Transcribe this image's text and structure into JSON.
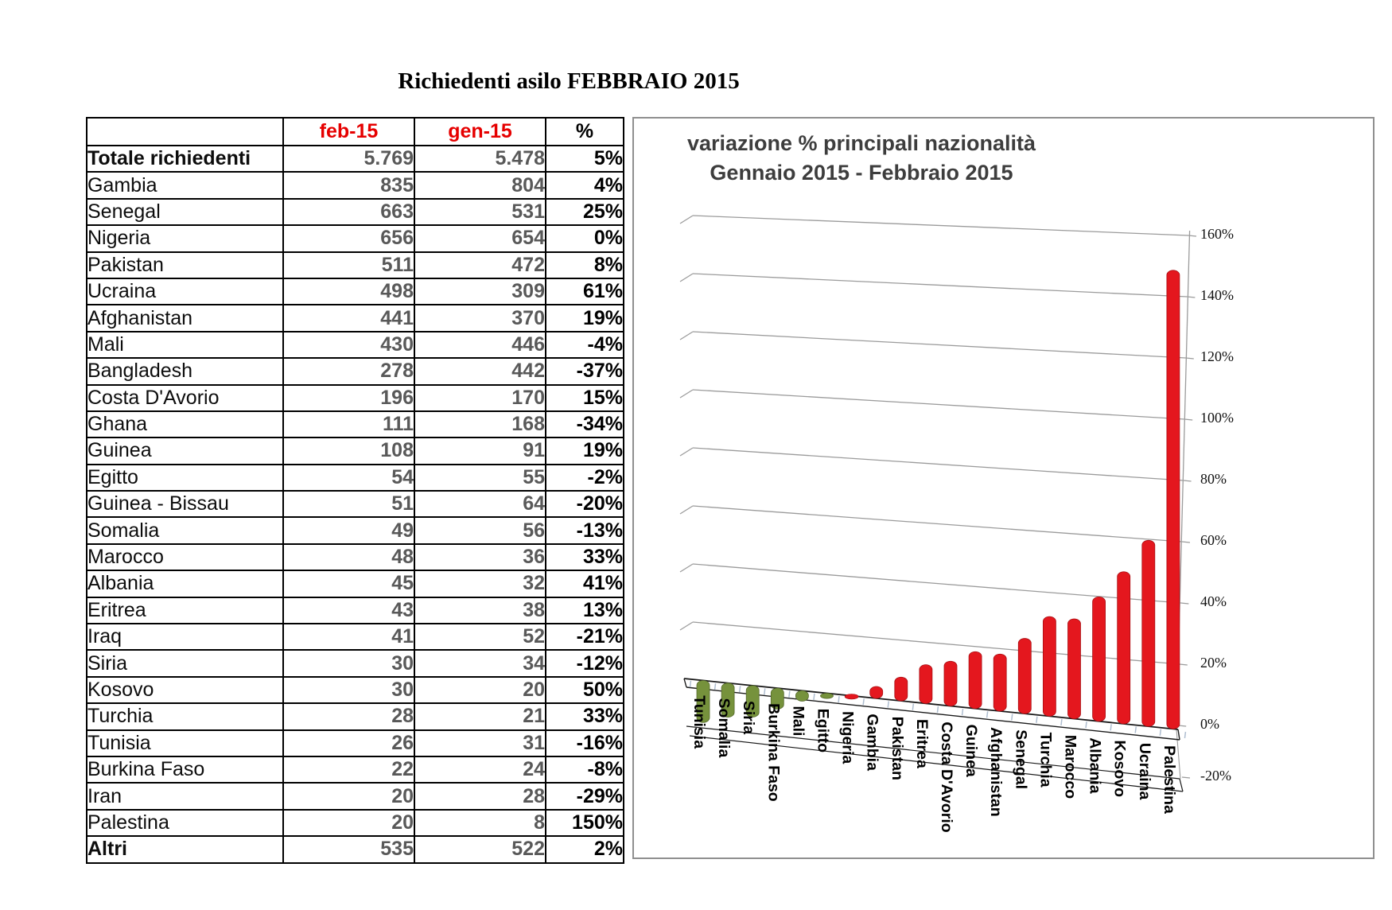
{
  "page_title": "Richiedenti asilo FEBBRAIO 2015",
  "table": {
    "headers": [
      "",
      "feb-15",
      "gen-15",
      "%"
    ],
    "header_accent_color": "#e60000",
    "highlight_color": "#ffff00",
    "rows": [
      {
        "label": "Totale richiedenti",
        "feb": "5.769",
        "gen": "5.478",
        "pct": "5%",
        "bold": true,
        "highlight": true
      },
      {
        "label": "Gambia",
        "feb": "835",
        "gen": "804",
        "pct": "4%"
      },
      {
        "label": "Senegal",
        "feb": "663",
        "gen": "531",
        "pct": "25%"
      },
      {
        "label": "Nigeria",
        "feb": "656",
        "gen": "654",
        "pct": "0%"
      },
      {
        "label": "Pakistan",
        "feb": "511",
        "gen": "472",
        "pct": "8%"
      },
      {
        "label": "Ucraina",
        "feb": "498",
        "gen": "309",
        "pct": "61%"
      },
      {
        "label": "Afghanistan",
        "feb": "441",
        "gen": "370",
        "pct": "19%"
      },
      {
        "label": "Mali",
        "feb": "430",
        "gen": "446",
        "pct": "-4%"
      },
      {
        "label": "Bangladesh",
        "feb": "278",
        "gen": "442",
        "pct": "-37%"
      },
      {
        "label": "Costa D'Avorio",
        "feb": "196",
        "gen": "170",
        "pct": "15%"
      },
      {
        "label": "Ghana",
        "feb": "111",
        "gen": "168",
        "pct": "-34%"
      },
      {
        "label": "Guinea",
        "feb": "108",
        "gen": "91",
        "pct": "19%"
      },
      {
        "label": "Egitto",
        "feb": "54",
        "gen": "55",
        "pct": "-2%"
      },
      {
        "label": "Guinea - Bissau",
        "feb": "51",
        "gen": "64",
        "pct": "-20%"
      },
      {
        "label": "Somalia",
        "feb": "49",
        "gen": "56",
        "pct": "-13%"
      },
      {
        "label": "Marocco",
        "feb": "48",
        "gen": "36",
        "pct": "33%"
      },
      {
        "label": "Albania",
        "feb": "45",
        "gen": "32",
        "pct": "41%"
      },
      {
        "label": "Eritrea",
        "feb": "43",
        "gen": "38",
        "pct": "13%"
      },
      {
        "label": "Iraq",
        "feb": "41",
        "gen": "52",
        "pct": "-21%"
      },
      {
        "label": "Siria",
        "feb": "30",
        "gen": "34",
        "pct": "-12%"
      },
      {
        "label": "Kosovo",
        "feb": "30",
        "gen": "20",
        "pct": "50%"
      },
      {
        "label": "Turchia",
        "feb": "28",
        "gen": "21",
        "pct": "33%"
      },
      {
        "label": "Tunisia",
        "feb": "26",
        "gen": "31",
        "pct": "-16%"
      },
      {
        "label": "Burkina Faso",
        "feb": "22",
        "gen": "24",
        "pct": "-8%"
      },
      {
        "label": "Iran",
        "feb": "20",
        "gen": "28",
        "pct": "-29%"
      },
      {
        "label": "Palestina",
        "feb": "20",
        "gen": "8",
        "pct": "150%"
      },
      {
        "label": "Altri",
        "feb": "535",
        "gen": "522",
        "pct": "2%",
        "bold": true
      }
    ]
  },
  "chart_data": {
    "type": "bar",
    "style": "3d-perspective",
    "title": "variazione % principali nazionalità",
    "subtitle": "Gennaio 2015 - Febbraio 2015",
    "categories": [
      "Tunisia",
      "Somalia",
      "Siria",
      "Burkina Faso",
      "Mali",
      "Egitto",
      "Nigeria",
      "Gambia",
      "Pakistan",
      "Eritrea",
      "Costa D'Avorio",
      "Guinea",
      "Afghanistan",
      "Senegal",
      "Turchia",
      "Marocco",
      "Albania",
      "Kosovo",
      "Ucraina",
      "Palestina"
    ],
    "values": [
      -16,
      -13,
      -12,
      -8,
      -4,
      -2,
      0,
      4,
      8,
      13,
      15,
      19,
      19,
      25,
      33,
      33,
      41,
      50,
      61,
      150
    ],
    "unit": "%",
    "ylim": [
      -20,
      160
    ],
    "yticks": [
      "160%",
      "140%",
      "120%",
      "100%",
      "80%",
      "60%",
      "40%",
      "20%",
      "0%",
      "-20%"
    ],
    "grid": true,
    "legend": "none",
    "bar_positive_color": "#e4171e",
    "bar_negative_color": "#76923c",
    "title_color": "#3d3d3d"
  }
}
